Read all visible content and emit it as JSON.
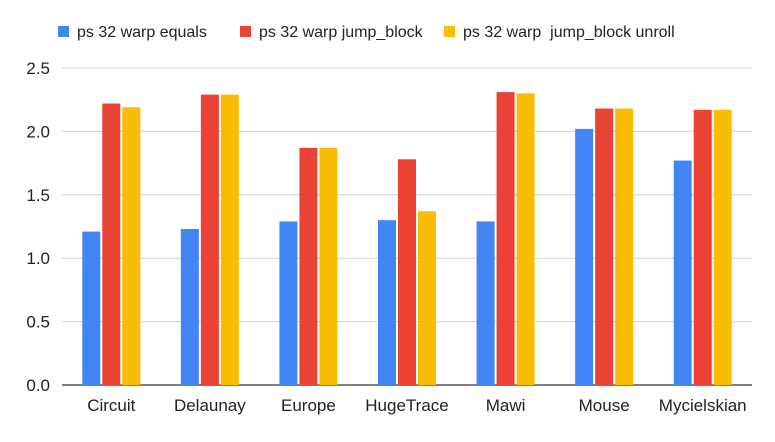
{
  "chart_data": {
    "type": "bar",
    "categories": [
      "Circuit",
      "Delaunay",
      "Europe",
      "HugeTrace",
      "Mawi",
      "Mouse",
      "Mycielskian"
    ],
    "series": [
      {
        "name": "ps 32 warp equals",
        "color": "#4285F4",
        "values": [
          1.21,
          1.23,
          1.29,
          1.3,
          1.29,
          2.02,
          1.77
        ]
      },
      {
        "name": "ps 32 warp jump_block",
        "color": "#EA4335",
        "values": [
          2.22,
          2.29,
          1.87,
          1.78,
          2.31,
          2.18,
          2.17
        ]
      },
      {
        "name": "ps 32 warp  jump_block unroll",
        "color": "#FBBC04",
        "values": [
          2.19,
          2.29,
          1.87,
          1.37,
          2.3,
          2.18,
          2.17
        ]
      }
    ],
    "ylim": [
      0,
      2.5
    ],
    "yticks": [
      "0.0",
      "0.5",
      "1.0",
      "1.5",
      "2.0",
      "2.5"
    ],
    "grid": true,
    "legend_position": "top"
  }
}
